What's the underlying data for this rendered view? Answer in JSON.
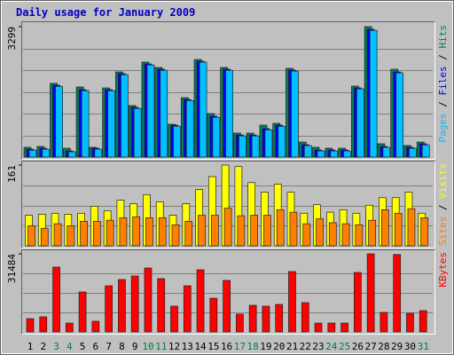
{
  "title": "Daily usage for January 2009",
  "legend_separator": " / ",
  "chart_data": [
    {
      "type": "bar",
      "ylim": [
        0,
        3299
      ],
      "yticks": [
        3299
      ],
      "series": [
        {
          "name": "Hits",
          "color": "#00805C",
          "values": [
            247,
            269,
            1863,
            224,
            1773,
            247,
            1750,
            2154,
            1302,
            2401,
            2266,
            830,
            1503,
            2468,
            1100,
            2266,
            606,
            606,
            808,
            853,
            2244,
            381,
            247,
            224,
            224,
            1795,
            3299,
            337,
            2222,
            292,
            381
          ]
        },
        {
          "name": "Files",
          "color": "#0000FF",
          "values": [
            200,
            222,
            1818,
            157,
            1706,
            224,
            1706,
            2110,
            1258,
            2356,
            2222,
            808,
            1459,
            2424,
            1033,
            2222,
            561,
            561,
            718,
            808,
            2200,
            314,
            180,
            180,
            180,
            1750,
            3232,
            269,
            2154,
            247,
            337
          ]
        },
        {
          "name": "Pages",
          "color": "#00C0FF",
          "values": [
            175,
            200,
            1790,
            135,
            1680,
            200,
            1680,
            2085,
            1230,
            2330,
            2195,
            780,
            1430,
            2400,
            1005,
            2195,
            535,
            535,
            690,
            780,
            2175,
            290,
            155,
            155,
            155,
            1725,
            3205,
            245,
            2130,
            222,
            310
          ]
        }
      ]
    },
    {
      "type": "bar",
      "ylim": [
        0,
        161
      ],
      "yticks": [
        161
      ],
      "series": [
        {
          "name": "Visits",
          "color": "#FFFF00",
          "values": [
            61,
            63,
            65,
            63,
            65,
            79,
            70,
            91,
            84,
            102,
            88,
            61,
            84,
            112,
            138,
            161,
            158,
            126,
            107,
            123,
            107,
            65,
            82,
            67,
            72,
            65,
            81,
            96,
            96,
            107,
            65
          ]
        },
        {
          "name": "Sites",
          "color": "#FF8000",
          "values": [
            40,
            35,
            44,
            40,
            49,
            49,
            51,
            56,
            58,
            56,
            56,
            42,
            49,
            61,
            61,
            75,
            60,
            61,
            61,
            72,
            67,
            44,
            54,
            46,
            44,
            42,
            51,
            72,
            65,
            74,
            56
          ]
        }
      ]
    },
    {
      "type": "bar",
      "ylim": [
        0,
        31484
      ],
      "yticks": [
        31484
      ],
      "categories": [
        "1",
        "2",
        "3",
        "4",
        "5",
        "6",
        "7",
        "8",
        "9",
        "10",
        "11",
        "12",
        "13",
        "14",
        "15",
        "16",
        "17",
        "18",
        "19",
        "20",
        "21",
        "22",
        "23",
        "24",
        "25",
        "26",
        "27",
        "28",
        "29",
        "30",
        "31"
      ],
      "category_label_colors": [
        "#000000",
        "#000000",
        "#008040",
        "#008040",
        "#000000",
        "#000000",
        "#000000",
        "#000000",
        "#000000",
        "#008040",
        "#008040",
        "#000000",
        "#000000",
        "#000000",
        "#000000",
        "#000000",
        "#008040",
        "#008040",
        "#000000",
        "#000000",
        "#000000",
        "#000000",
        "#000000",
        "#008040",
        "#008040",
        "#000000",
        "#000000",
        "#000000",
        "#000000",
        "#000000",
        "#008040"
      ],
      "series": [
        {
          "name": "KBytes",
          "color": "#FF0000",
          "values": [
            5367,
            6083,
            26119,
            3578,
            16101,
            4294,
            18606,
            21110,
            22541,
            25762,
            21468,
            10376,
            18606,
            25046,
            13596,
            20752,
            7156,
            10734,
            10376,
            11092,
            24330,
            11807,
            3578,
            3578,
            3578,
            23973,
            31484,
            7872,
            31200,
            7514,
            8587
          ]
        }
      ]
    }
  ]
}
